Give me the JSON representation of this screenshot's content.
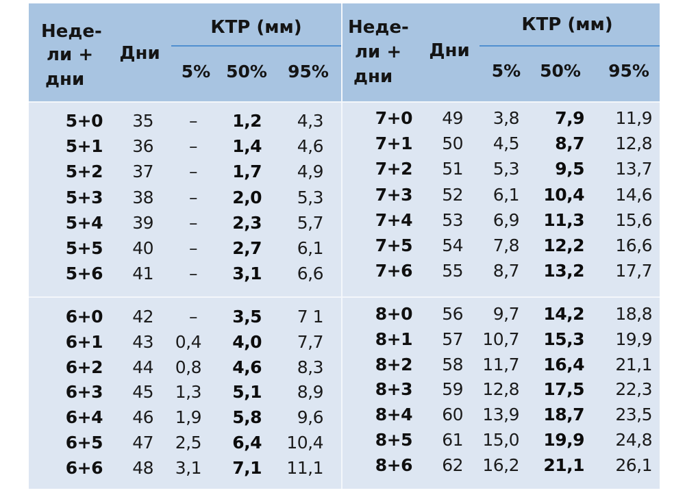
{
  "header": {
    "weeks_line1": "Неде-",
    "weeks_line2": "ли +",
    "weeks_line3": "дни",
    "days": "Дни",
    "ktr": "КТР (мм)",
    "p5": "5%",
    "p50": "50%",
    "p95": "95%"
  },
  "left": [
    [
      "5+0",
      "35",
      "–",
      "1,2",
      "4,3"
    ],
    [
      "5+1",
      "36",
      "–",
      "1,4",
      "4,6"
    ],
    [
      "5+2",
      "37",
      "–",
      "1,7",
      "4,9"
    ],
    [
      "5+3",
      "38",
      "–",
      "2,0",
      "5,3"
    ],
    [
      "5+4",
      "39",
      "–",
      "2,3",
      "5,7"
    ],
    [
      "5+5",
      "40",
      "–",
      "2,7",
      "6,1"
    ],
    [
      "5+6",
      "41",
      "–",
      "3,1",
      "6,6"
    ],
    [
      "6+0",
      "42",
      "–",
      "3,5",
      "7 1"
    ],
    [
      "6+1",
      "43",
      "0,4",
      "4,0",
      "7,7"
    ],
    [
      "6+2",
      "44",
      "0,8",
      "4,6",
      "8,3"
    ],
    [
      "6+3",
      "45",
      "1,3",
      "5,1",
      "8,9"
    ],
    [
      "6+4",
      "46",
      "1,9",
      "5,8",
      "9,6"
    ],
    [
      "6+5",
      "47",
      "2,5",
      "6,4",
      "10,4"
    ],
    [
      "6+6",
      "48",
      "3,1",
      "7,1",
      "11,1"
    ]
  ],
  "right": [
    [
      "7+0",
      "49",
      "3,8",
      "7,9",
      "11,9"
    ],
    [
      "7+1",
      "50",
      "4,5",
      "8,7",
      "12,8"
    ],
    [
      "7+2",
      "51",
      "5,3",
      "9,5",
      "13,7"
    ],
    [
      "7+3",
      "52",
      "6,1",
      "10,4",
      "14,6"
    ],
    [
      "7+4",
      "53",
      "6,9",
      "11,3",
      "15,6"
    ],
    [
      "7+5",
      "54",
      "7,8",
      "12,2",
      "16,6"
    ],
    [
      "7+6",
      "55",
      "8,7",
      "13,2",
      "17,7"
    ],
    [
      "8+0",
      "56",
      "9,7",
      "14,2",
      "18,8"
    ],
    [
      "8+1",
      "57",
      "10,7",
      "15,3",
      "19,9"
    ],
    [
      "8+2",
      "58",
      "11,7",
      "16,4",
      "21,1"
    ],
    [
      "8+3",
      "59",
      "12,8",
      "17,5",
      "22,3"
    ],
    [
      "8+4",
      "60",
      "13,9",
      "18,7",
      "23,5"
    ],
    [
      "8+5",
      "61",
      "15,0",
      "19,9",
      "24,8"
    ],
    [
      "8+6",
      "62",
      "16,2",
      "21,1",
      "26,1"
    ]
  ]
}
